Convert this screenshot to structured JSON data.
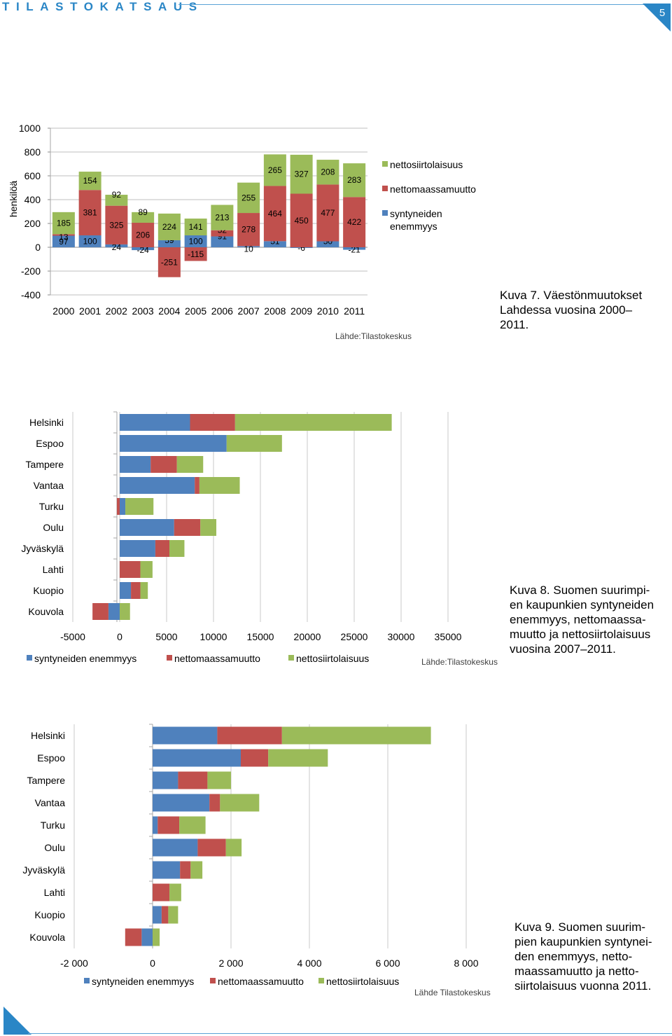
{
  "header": {
    "publication": "TILASTOKATSAUS",
    "page_number": "5"
  },
  "colors": {
    "natural": "#4f81bd",
    "domestic": "#c0504d",
    "international": "#9bbb59",
    "accent": "#2a86c6"
  },
  "captions": {
    "fig7": [
      "Kuva 7. Väestönmuutokset",
      "Lahdessa vuosina 2000–",
      "2011."
    ],
    "fig8": [
      "Kuva 8. Suomen suurimpi-",
      "en kaupunkien syntyneiden",
      "enemmyys, nettomaassa-",
      "muutto ja nettosiirtolaisuus",
      "vuosina 2007–2011."
    ],
    "fig9": [
      "Kuva 9. Suomen suurim-",
      "pien kaupunkien syntynei-",
      "den enemmyys, netto-",
      "maassamuutto ja netto-",
      "siirtolaisuus vuonna 2011."
    ]
  },
  "chart_data": [
    {
      "type": "bar",
      "stacked": true,
      "orientation": "vertical",
      "ylabel": "henkilöä",
      "ylim": [
        -400,
        1000
      ],
      "yticks": [
        "1000",
        "800",
        "600",
        "400",
        "200",
        "0",
        "-200",
        "-400"
      ],
      "categories": [
        "2000",
        "2001",
        "2002",
        "2003",
        "2004",
        "2005",
        "2006",
        "2007",
        "2008",
        "2009",
        "2010",
        "2011"
      ],
      "legend_position": "right",
      "source": "Lähde:Tilastokeskus",
      "series": [
        {
          "name": "syntyneiden enemmyys",
          "color": "#4f81bd",
          "values": [
            97,
            100,
            24,
            -24,
            59,
            100,
            91,
            10,
            51,
            -6,
            50,
            -21
          ],
          "labels": [
            "97",
            "100",
            "24",
            "-24",
            "59",
            "100",
            "91",
            "10",
            "51",
            "-6",
            "50",
            "-21"
          ]
        },
        {
          "name": "nettomaassamuutto",
          "color": "#c0504d",
          "values": [
            13,
            381,
            325,
            206,
            -251,
            -115,
            52,
            278,
            464,
            450,
            477,
            422
          ],
          "labels": [
            "13",
            "381",
            "325",
            "206",
            "-251",
            "-115",
            "52",
            "278",
            "464",
            "450",
            "477",
            "422"
          ]
        },
        {
          "name": "nettosiirtolaisuus",
          "color": "#9bbb59",
          "values": [
            185,
            154,
            92,
            89,
            224,
            141,
            213,
            255,
            265,
            327,
            208,
            283
          ],
          "labels": [
            "185",
            "154",
            "92",
            "89",
            "224",
            "141",
            "213",
            "255",
            "265",
            "327",
            "208",
            "283"
          ]
        }
      ]
    },
    {
      "type": "bar",
      "stacked": true,
      "orientation": "horizontal",
      "xlim": [
        -5000,
        35000
      ],
      "xticks": [
        "-5000",
        "0",
        "5000",
        "10000",
        "15000",
        "20000",
        "25000",
        "30000",
        "35000"
      ],
      "categories": [
        "Helsinki",
        "Espoo",
        "Tampere",
        "Vantaa",
        "Turku",
        "Oulu",
        "Jyväskylä",
        "Lahti",
        "Kuopio",
        "Kouvola"
      ],
      "legend_position": "bottom",
      "source": "Lähde:Tilastokeskus",
      "series": [
        {
          "name": "syntyneiden enemmyys",
          "color": "#4f81bd",
          "values": [
            7500,
            11400,
            3300,
            8000,
            600,
            5800,
            3800,
            0,
            1200,
            -1200
          ]
        },
        {
          "name": "nettomaassamuutto",
          "color": "#c0504d",
          "values": [
            4800,
            0,
            2800,
            500,
            -300,
            2800,
            1500,
            2200,
            1000,
            -1700
          ]
        },
        {
          "name": "nettosiirtolaisuus",
          "color": "#9bbb59",
          "values": [
            16700,
            5900,
            2800,
            4300,
            3000,
            1700,
            1600,
            1300,
            800,
            1100
          ]
        }
      ]
    },
    {
      "type": "bar",
      "stacked": true,
      "orientation": "horizontal",
      "xlim": [
        -2000,
        8000
      ],
      "xticks": [
        "-2 000",
        "0",
        "2 000",
        "4 000",
        "6 000",
        "8 000"
      ],
      "categories": [
        "Helsinki",
        "Espoo",
        "Tampere",
        "Vantaa",
        "Turku",
        "Oulu",
        "Jyväskylä",
        "Lahti",
        "Kuopio",
        "Kouvola"
      ],
      "legend_position": "bottom",
      "source": "Lähde Tilastokeskus",
      "series": [
        {
          "name": "syntyneiden enemmyys",
          "color": "#4f81bd",
          "values": [
            1650,
            2250,
            650,
            1450,
            130,
            1150,
            700,
            0,
            230,
            -280
          ]
        },
        {
          "name": "nettomaassamuutto",
          "color": "#c0504d",
          "values": [
            1650,
            700,
            750,
            270,
            550,
            720,
            270,
            430,
            170,
            -420
          ]
        },
        {
          "name": "nettosiirtolaisuus",
          "color": "#9bbb59",
          "values": [
            3800,
            1520,
            600,
            1000,
            670,
            400,
            300,
            300,
            250,
            180
          ]
        }
      ]
    }
  ]
}
